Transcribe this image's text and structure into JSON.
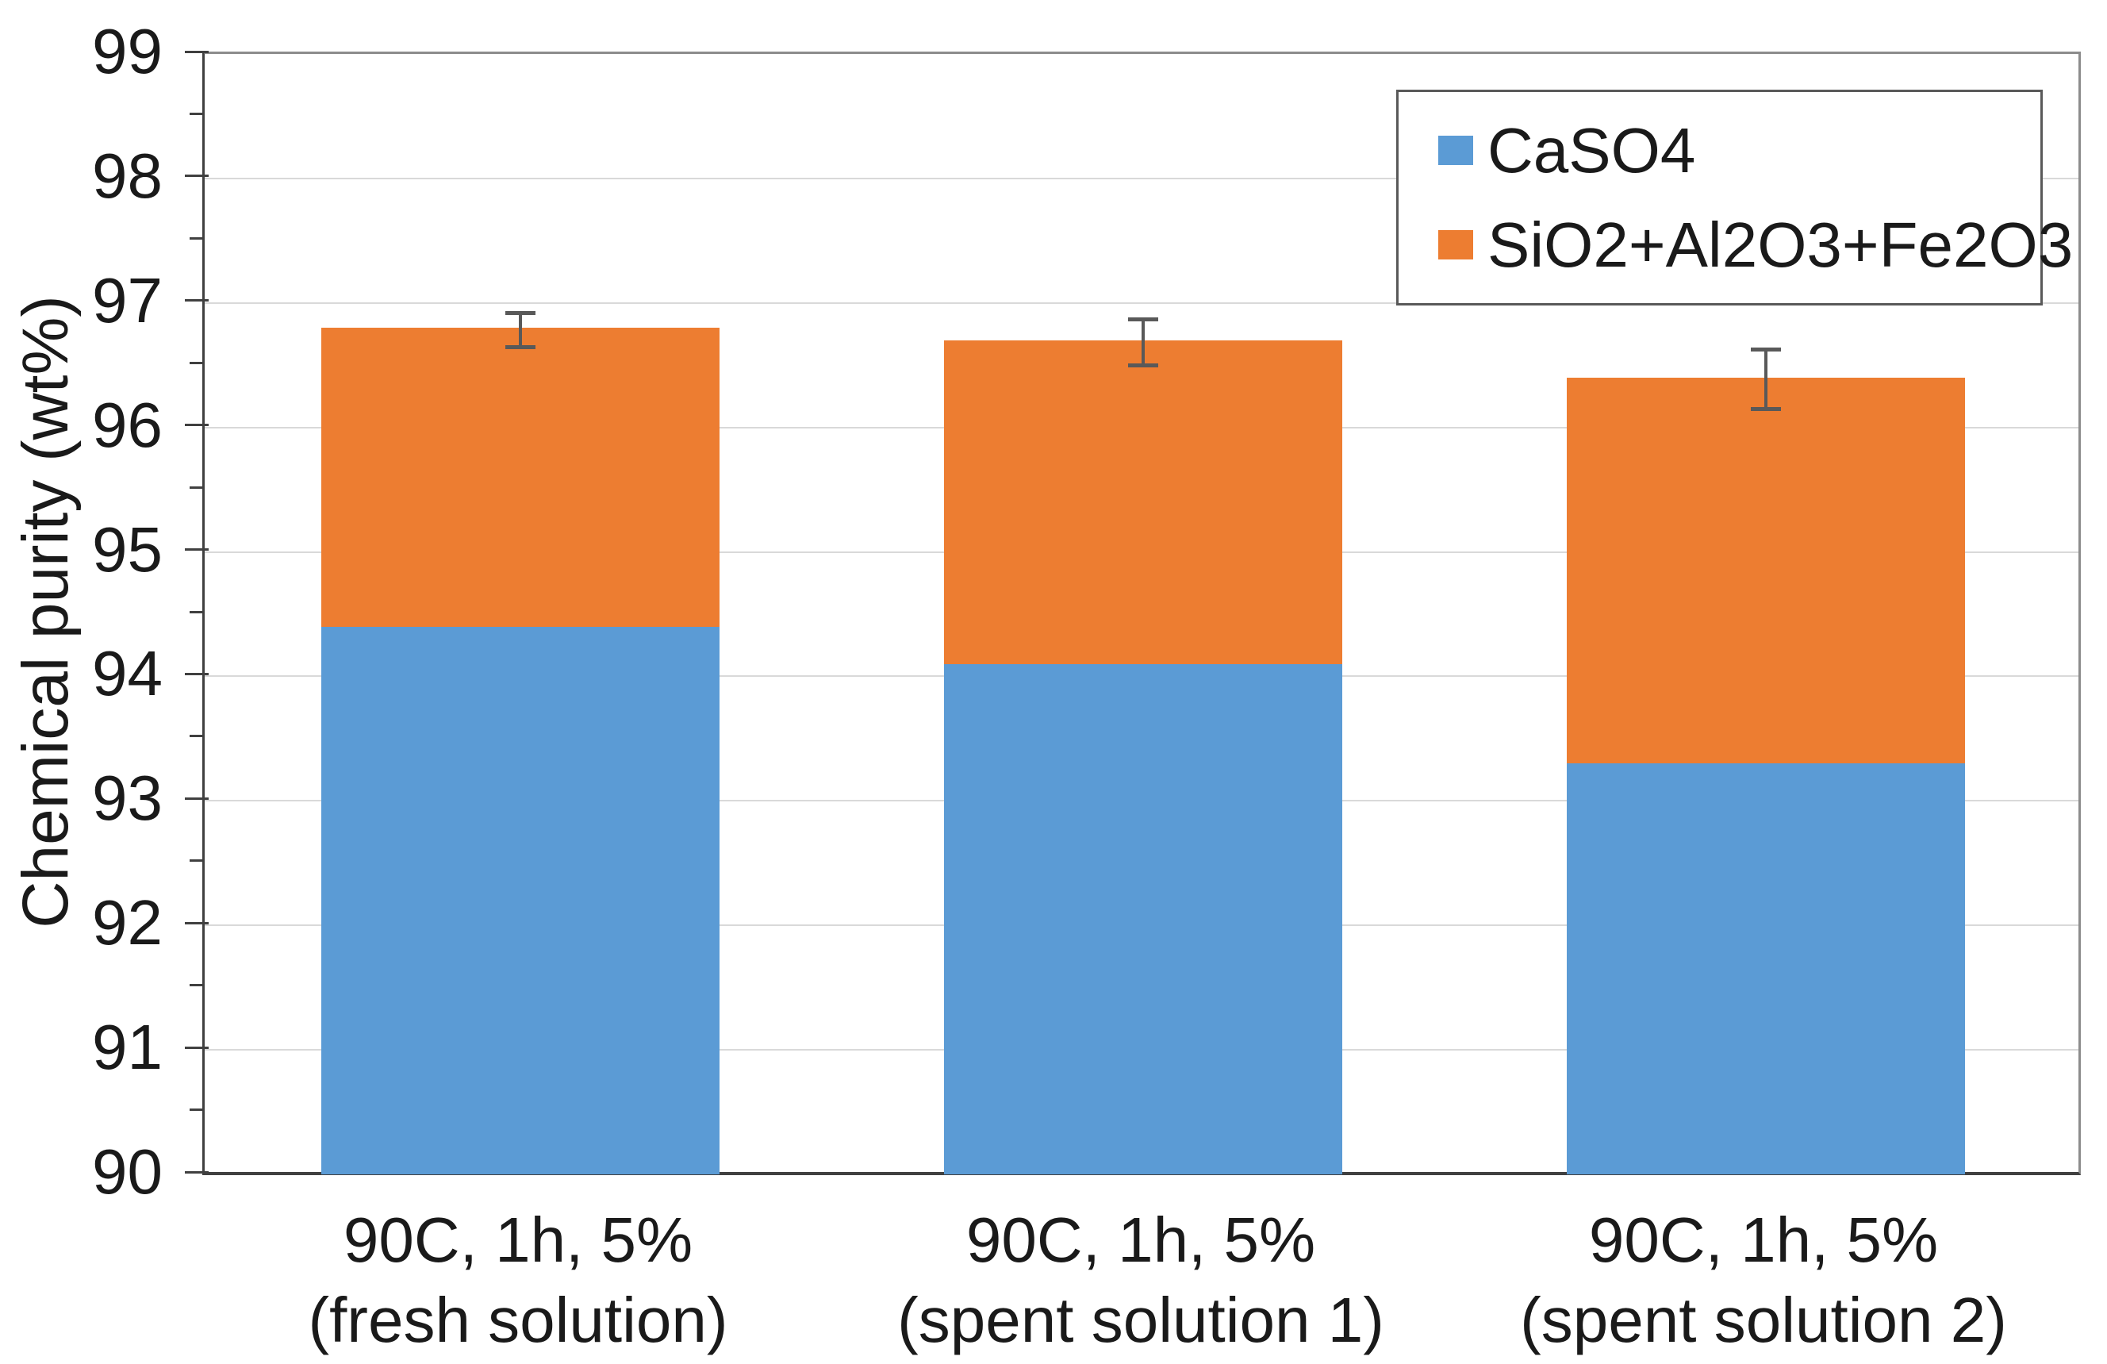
{
  "chart_data": {
    "type": "bar",
    "stacked": true,
    "title": "",
    "xlabel": "",
    "ylabel": "Chemical purity (wt%)",
    "ylim": [
      90,
      99
    ],
    "ytick_step": 1,
    "ytick_minor_step": 0.5,
    "ytick_labels": [
      "90",
      "91",
      "92",
      "93",
      "94",
      "95",
      "96",
      "97",
      "98",
      "99"
    ],
    "grid": "horizontal-major",
    "legend_position": "top-right-inside",
    "categories": [
      [
        "90C, 1h, 5%",
        "(fresh solution)"
      ],
      [
        "90C, 1h, 5%",
        "(spent solution 1)"
      ],
      [
        "90C, 1h, 5%",
        "(spent solution 2)"
      ]
    ],
    "series": [
      {
        "name": "CaSO4",
        "color": "#5B9BD5",
        "values": [
          94.4,
          94.1,
          93.3
        ]
      },
      {
        "name": "SiO2+Al2O3+Fe2O3",
        "color": "#ED7D31",
        "values": [
          2.4,
          2.6,
          3.1
        ]
      }
    ],
    "stack_totals": [
      96.8,
      96.7,
      96.4
    ],
    "error_bars": {
      "applies_to": "stack_total",
      "low": [
        96.65,
        96.5,
        96.15
      ],
      "high": [
        96.92,
        96.87,
        96.63
      ],
      "color": "#595959"
    },
    "colors": {
      "gridline": "#D9D9D9",
      "axis": "#404040",
      "plot_border": "#8C8C8C",
      "text": "#1a1a1a"
    }
  }
}
